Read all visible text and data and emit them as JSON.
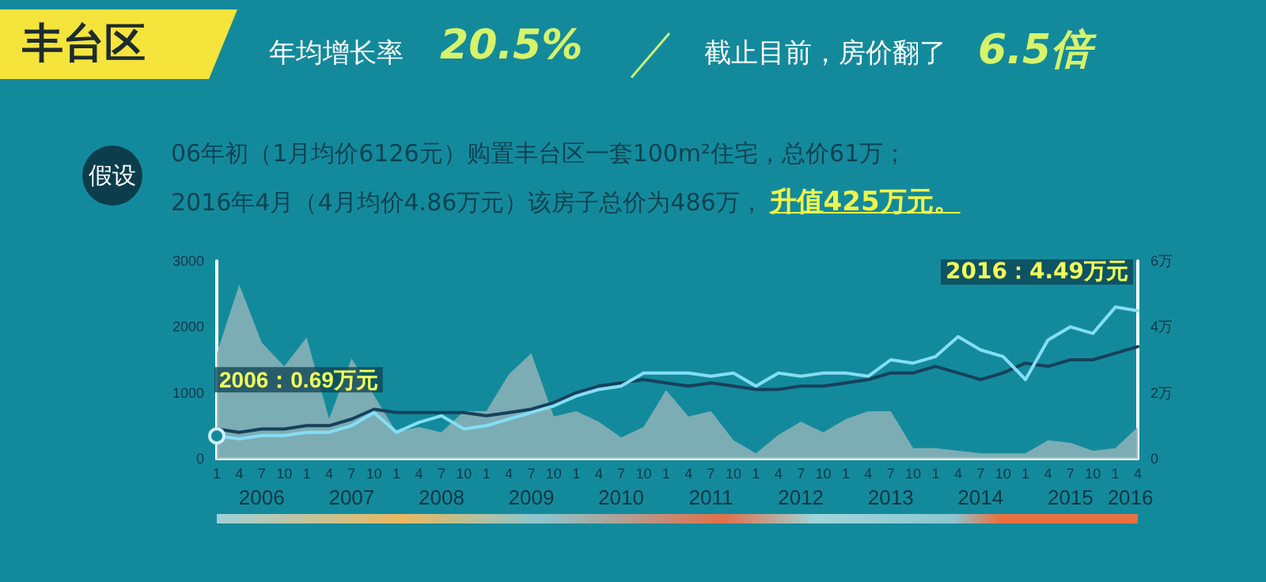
{
  "chart_data": {
    "type": "line",
    "title": "丰台区",
    "annotations": [
      "年均增长率",
      "20.5%",
      "截止目前，房价翻了",
      "6.5倍",
      "假设",
      "06年初（1月均价6126元）购置丰台区一套100m²住宅，总价61万；",
      "2016年4月（4月均价4.86万元）该房子总价为486万，",
      "升值425万元。",
      {
        "text": "2006：0.69万元",
        "x": "2006-01",
        "y": 0.69
      },
      "2016：4.49万元"
    ],
    "x": [
      "2006-01",
      "2006-04",
      "2006-07",
      "2006-10",
      "2007-01",
      "2007-04",
      "2007-07",
      "2007-10",
      "2008-01",
      "2008-04",
      "2008-07",
      "2008-10",
      "2009-01",
      "2009-04",
      "2009-07",
      "2009-10",
      "2010-01",
      "2010-04",
      "2010-07",
      "2010-10",
      "2011-01",
      "2011-04",
      "2011-07",
      "2011-10",
      "2012-01",
      "2012-04",
      "2012-07",
      "2012-10",
      "2013-01",
      "2013-04",
      "2013-07",
      "2013-10",
      "2014-01",
      "2014-04",
      "2014-07",
      "2014-10",
      "2015-01",
      "2015-04",
      "2015-07",
      "2015-10",
      "2016-01",
      "2016-04"
    ],
    "series": [
      {
        "type": "area",
        "color": "#8fb3b9",
        "values": [
          1600,
          2640,
          1760,
          1400,
          1840,
          600,
          1520,
          960,
          400,
          480,
          400,
          720,
          720,
          1280,
          1600,
          640,
          720,
          560,
          320,
          480,
          1040,
          640,
          720,
          280,
          80,
          360,
          560,
          400,
          600,
          720,
          720,
          160,
          160,
          120,
          80,
          80,
          80,
          280,
          240,
          120,
          160,
          480
        ]
      },
      {
        "axis": "y2",
        "color": "#17415a",
        "values": [
          0.9,
          0.8,
          0.9,
          0.9,
          1.0,
          1.0,
          1.2,
          1.5,
          1.4,
          1.4,
          1.4,
          1.4,
          1.3,
          1.4,
          1.5,
          1.7,
          2.0,
          2.2,
          2.3,
          2.4,
          2.3,
          2.2,
          2.3,
          2.2,
          2.1,
          2.1,
          2.2,
          2.2,
          2.3,
          2.4,
          2.6,
          2.6,
          2.8,
          2.6,
          2.4,
          2.6,
          2.9,
          2.8,
          3.0,
          3.0,
          3.2,
          3.4
        ]
      },
      {
        "axis": "y2",
        "color": "#84def5",
        "values": [
          0.69,
          0.6,
          0.7,
          0.7,
          0.8,
          0.8,
          1.0,
          1.4,
          0.8,
          1.1,
          1.3,
          0.9,
          1.0,
          1.2,
          1.4,
          1.6,
          1.9,
          2.1,
          2.2,
          2.6,
          2.6,
          2.6,
          2.5,
          2.6,
          2.2,
          2.6,
          2.5,
          2.6,
          2.6,
          2.5,
          3.0,
          2.9,
          3.1,
          3.7,
          3.3,
          3.1,
          2.4,
          3.6,
          4.0,
          3.8,
          4.6,
          4.49
        ]
      }
    ],
    "xlim": [
      "2006-01",
      "2016-04"
    ],
    "xticks": [
      {
        "value": "2006-01",
        "label": "1"
      },
      {
        "value": "2006-04",
        "label": "4"
      },
      {
        "value": "2006-07",
        "label": "7"
      },
      {
        "value": "2006-10",
        "label": "10"
      },
      {
        "value": "2007-01",
        "label": "1"
      },
      {
        "value": "2007-04",
        "label": "4"
      },
      {
        "value": "2007-07",
        "label": "7"
      },
      {
        "value": "2007-10",
        "label": "10"
      },
      {
        "value": "2008-01",
        "label": "1"
      },
      {
        "value": "2008-04",
        "label": "4"
      },
      {
        "value": "2008-07",
        "label": "7"
      },
      {
        "value": "2008-10",
        "label": "10"
      },
      {
        "value": "2009-01",
        "label": "1"
      },
      {
        "value": "2009-04",
        "label": "4"
      },
      {
        "value": "2009-07",
        "label": "7"
      },
      {
        "value": "2009-10",
        "label": "10"
      },
      {
        "value": "2010-01",
        "label": "1"
      },
      {
        "value": "2010-04",
        "label": "4"
      },
      {
        "value": "2010-07",
        "label": "7"
      },
      {
        "value": "2010-10",
        "label": "10"
      },
      {
        "value": "2011-01",
        "label": "1"
      },
      {
        "value": "2011-04",
        "label": "4"
      },
      {
        "value": "2011-07",
        "label": "7"
      },
      {
        "value": "2011-10",
        "label": "10"
      },
      {
        "value": "2012-01",
        "label": "1"
      },
      {
        "value": "2012-04",
        "label": "4"
      },
      {
        "value": "2012-07",
        "label": "7"
      },
      {
        "value": "2012-10",
        "label": "10"
      },
      {
        "value": "2013-01",
        "label": "1"
      },
      {
        "value": "2013-04",
        "label": "4"
      },
      {
        "value": "2013-07",
        "label": "7"
      },
      {
        "value": "2013-10",
        "label": "10"
      },
      {
        "value": "2014-01",
        "label": "1"
      },
      {
        "value": "2014-04",
        "label": "4"
      },
      {
        "value": "2014-07",
        "label": "7"
      },
      {
        "value": "2014-10",
        "label": "10"
      },
      {
        "value": "2015-01",
        "label": "1"
      },
      {
        "value": "2015-04",
        "label": "4"
      },
      {
        "value": "2015-07",
        "label": "7"
      },
      {
        "value": "2015-10",
        "label": "10"
      },
      {
        "value": "2016-01",
        "label": "1"
      },
      {
        "value": "2016-04",
        "label": "4"
      }
    ],
    "x2lim": [
      "2006-01",
      "2016-04"
    ],
    "x2ticks": [
      {
        "value": "2006-07",
        "label": "2006"
      },
      {
        "value": "2007-07",
        "label": "2007"
      },
      {
        "value": "2008-07",
        "label": "2008"
      },
      {
        "value": "2009-07",
        "label": "2009"
      },
      {
        "value": "2010-07",
        "label": "2010"
      },
      {
        "value": "2011-07",
        "label": "2011"
      },
      {
        "value": "2012-07",
        "label": "2012"
      },
      {
        "value": "2013-07",
        "label": "2013"
      },
      {
        "value": "2014-07",
        "label": "2014"
      },
      {
        "value": "2015-07",
        "label": "2015"
      },
      {
        "value": "2016-03",
        "label": "2016"
      }
    ],
    "ylim": [
      0,
      3000
    ],
    "yticks": [
      0,
      1000,
      2000,
      3000
    ],
    "y2lim": [
      0,
      6
    ],
    "y2ticks": [
      0,
      {
        "value": 2,
        "label": "2万"
      },
      {
        "value": 4,
        "label": "4万"
      },
      {
        "value": 6,
        "label": "6万"
      }
    ],
    "grid": false,
    "marker": "none",
    "line_style": "solid"
  }
}
